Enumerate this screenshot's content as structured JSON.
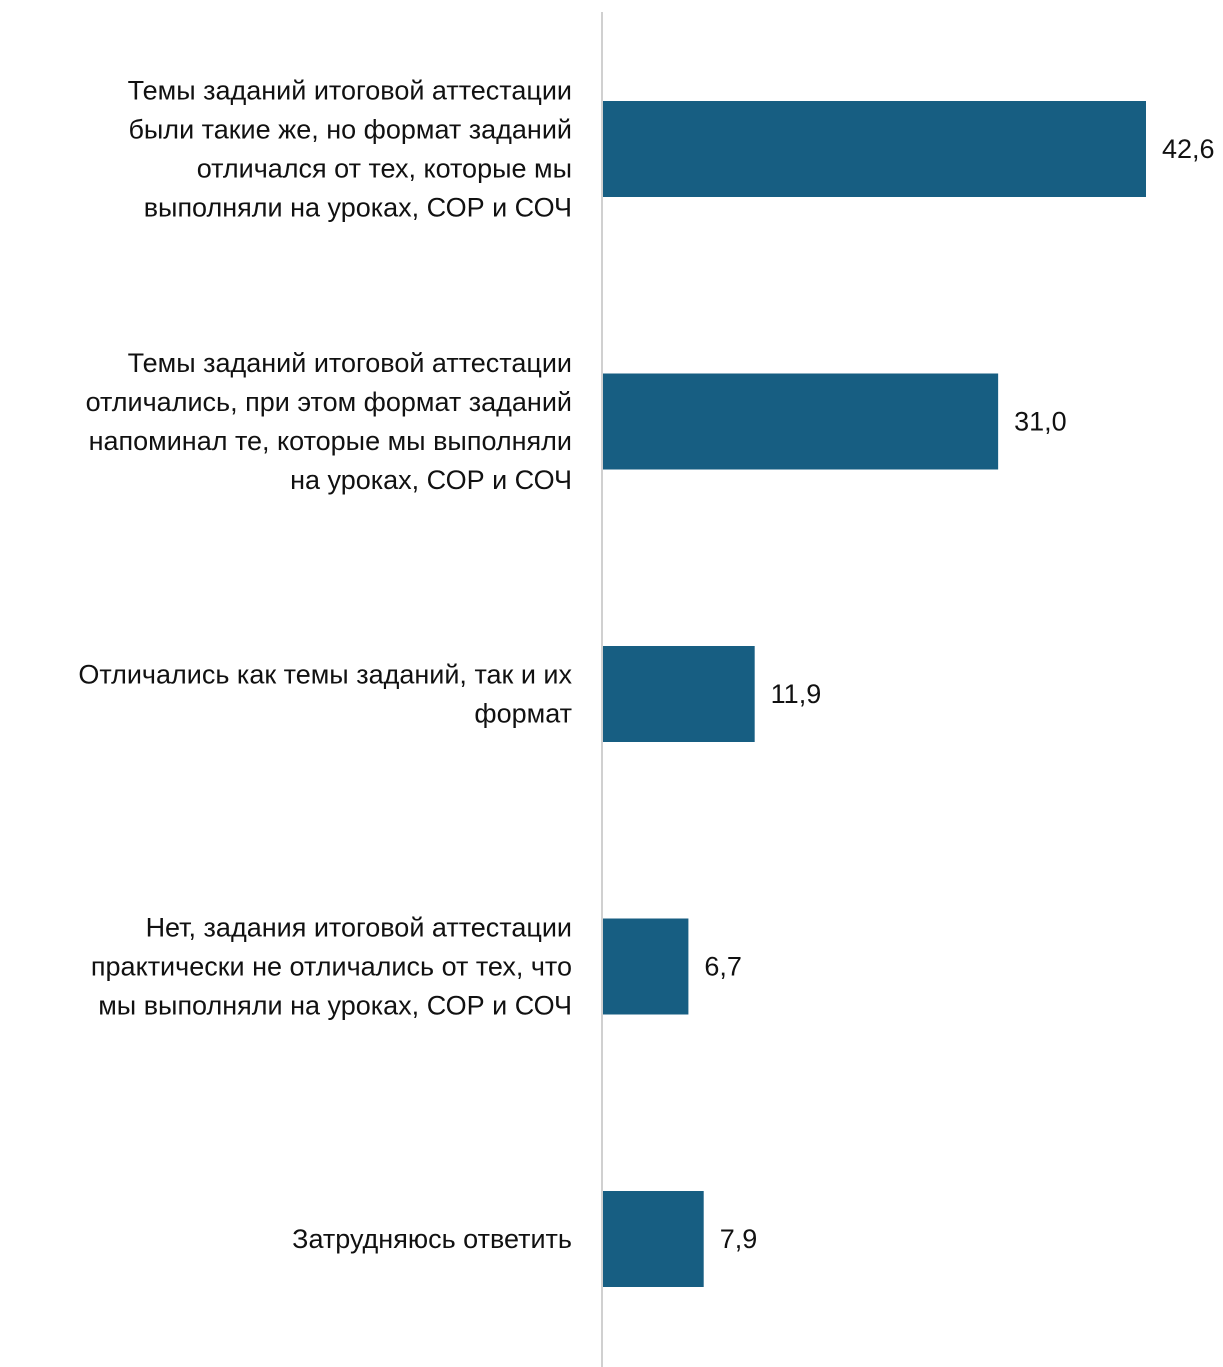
{
  "chart_data": {
    "type": "bar",
    "orientation": "horizontal",
    "categories": [
      [
        "Темы заданий итоговой аттестации",
        "были такие же, но формат заданий",
        "отличался от тех, которые мы",
        "выполняли на уроках, СОР и СОЧ"
      ],
      [
        "Темы заданий итоговой аттестации",
        "отличались, при этом формат заданий",
        "напоминал те, которые мы выполняли",
        "на уроках, СОР и СОЧ"
      ],
      [
        "Отличались как темы заданий, так и их",
        "формат"
      ],
      [
        "Нет, задания итоговой аттестации",
        "практически не отличались от тех, что",
        "мы выполняли на уроках, СОР и СОЧ"
      ],
      [
        "Затрудняюсь ответить"
      ]
    ],
    "values": [
      42.6,
      31.0,
      11.9,
      6.7,
      7.9
    ],
    "value_labels": [
      "42,6",
      "31,0",
      "11,9",
      "6,7",
      "7,9"
    ],
    "title": "",
    "xlabel": "",
    "ylabel": "",
    "xlim": [
      0,
      42.6
    ],
    "grid": false,
    "legend": "none",
    "bar_color": "#175e82",
    "axis_color": "#d0d0d0"
  }
}
